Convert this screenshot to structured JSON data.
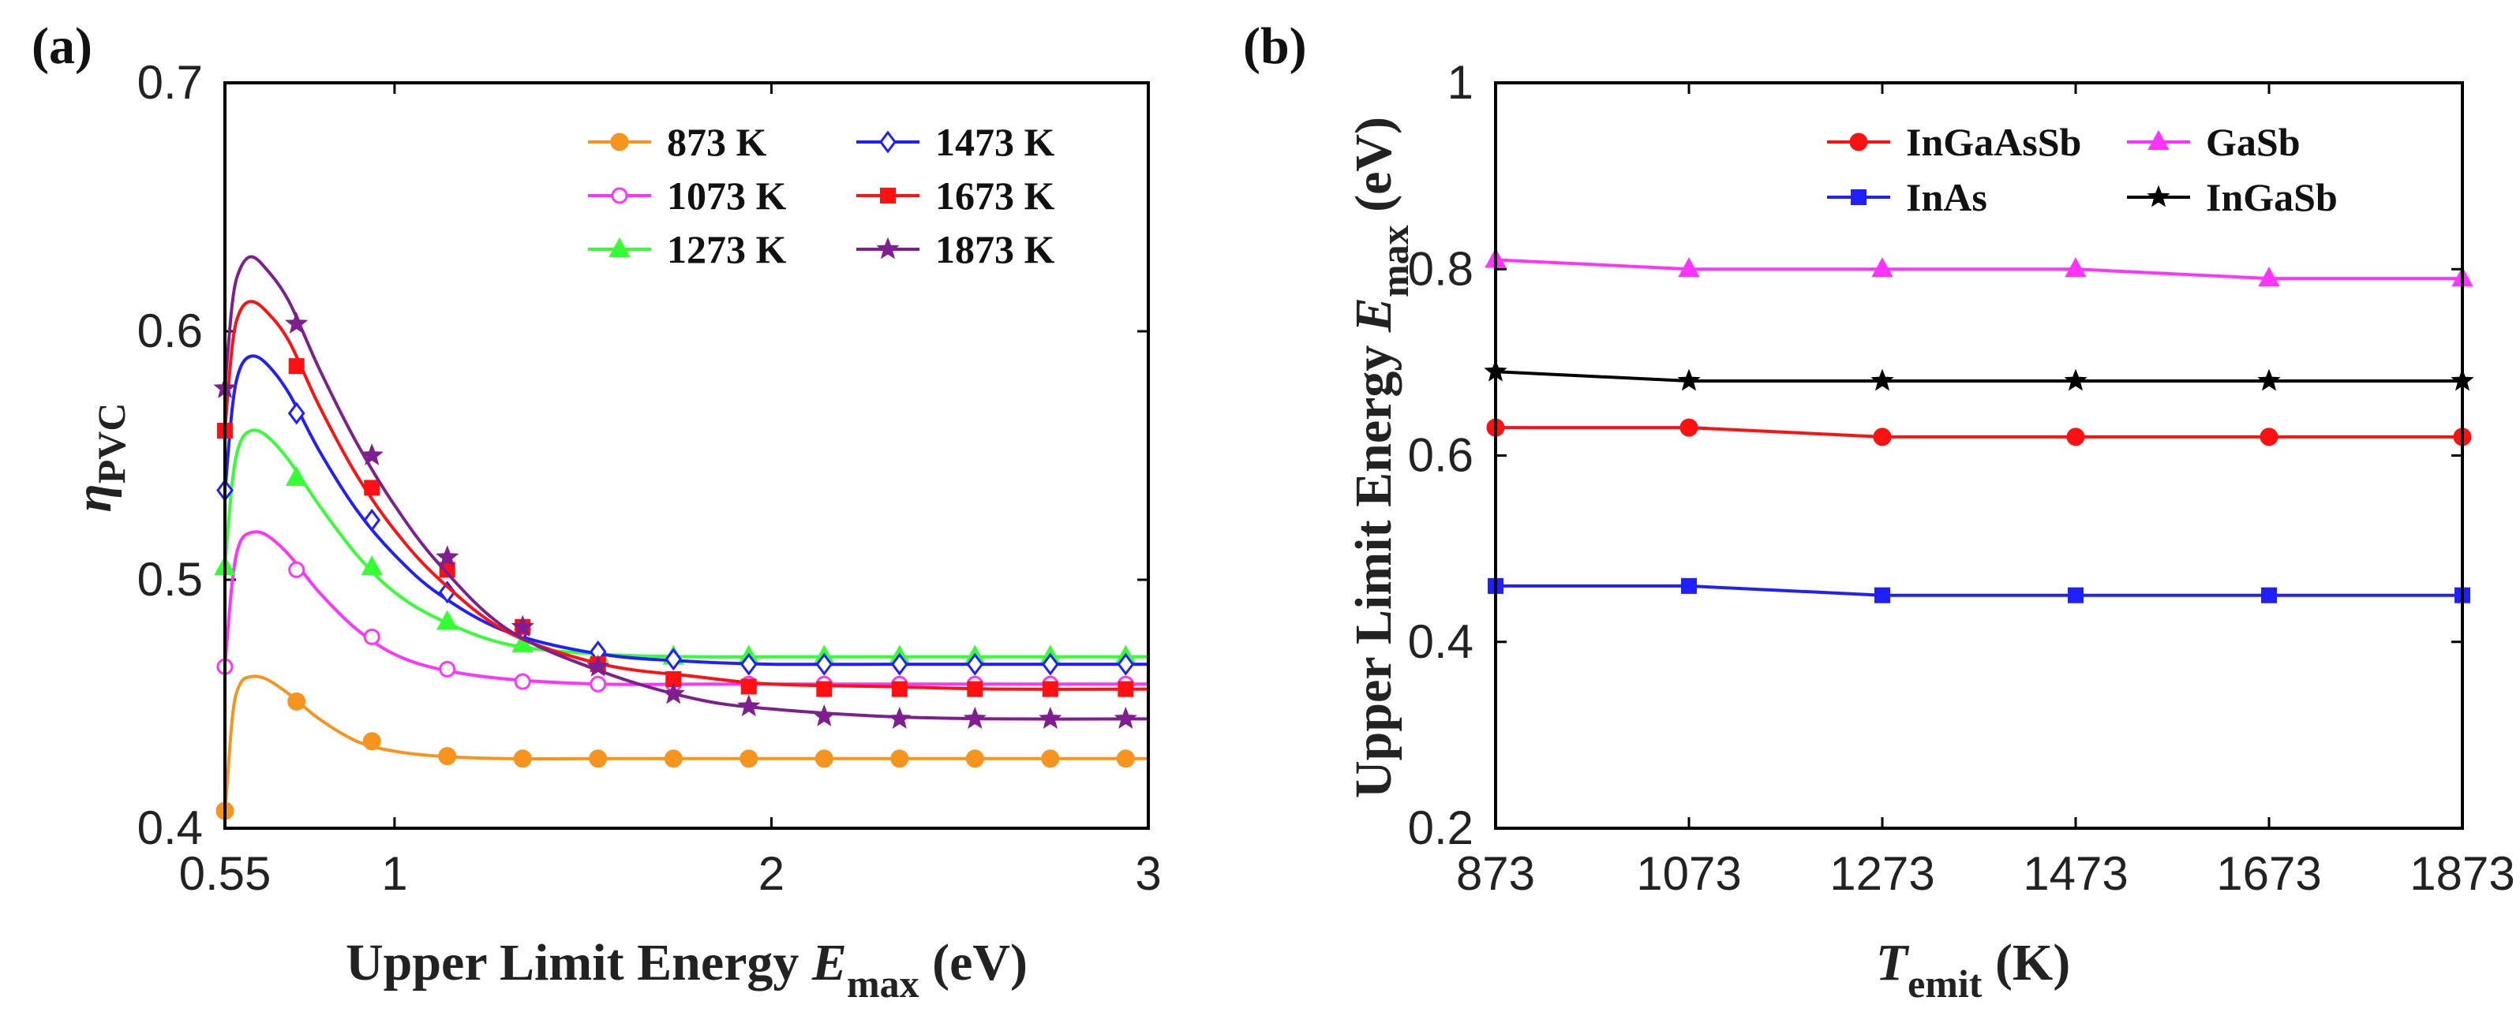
{
  "chart_data": [
    {
      "type": "line",
      "panel_label": "(a)",
      "ylabel": {
        "symbol": "η",
        "subscript": "PVC"
      },
      "xlabel": {
        "text": "Upper Limit Energy ",
        "symbol": "E",
        "subscript": "max",
        "unit": " (eV)"
      },
      "xlim": [
        0.55,
        3
      ],
      "ylim": [
        0.4,
        0.7
      ],
      "xticks": [
        0.55,
        1,
        2,
        3
      ],
      "xtick_labels": [
        "0.55",
        "1",
        "2",
        "3"
      ],
      "yticks": [
        0.4,
        0.5,
        0.6,
        0.7
      ],
      "ytick_labels": [
        "0.4",
        "0.5",
        "0.6",
        "0.7"
      ],
      "legend_position": "top-right",
      "series": [
        {
          "name": "873 K",
          "color": "#f7941d",
          "marker": "circle-filled",
          "x": [
            0.55,
            0.57,
            0.59,
            0.62,
            0.66,
            0.72,
            0.8,
            0.9,
            1.0,
            1.12,
            1.3,
            1.55,
            1.8,
            2.0,
            2.3,
            2.6,
            3.0
          ],
          "y": [
            0.405,
            0.445,
            0.458,
            0.461,
            0.46,
            0.454,
            0.444,
            0.435,
            0.431,
            0.429,
            0.428,
            0.428,
            0.428,
            0.428,
            0.428,
            0.428,
            0.428
          ],
          "markers_x": [
            0.55,
            0.74,
            0.94,
            1.14,
            1.34,
            1.54,
            1.74,
            1.94,
            2.14,
            2.34,
            2.54,
            2.74,
            2.94
          ],
          "markers_y": [
            0.407,
            0.451,
            0.435,
            0.429,
            0.428,
            0.428,
            0.428,
            0.428,
            0.428,
            0.428,
            0.428,
            0.428,
            0.428
          ]
        },
        {
          "name": "1073 K",
          "color": "#ff33ff",
          "marker": "circle-open",
          "x": [
            0.55,
            0.57,
            0.59,
            0.62,
            0.66,
            0.72,
            0.8,
            0.9,
            1.0,
            1.12,
            1.3,
            1.55,
            1.8,
            2.0,
            2.3,
            2.6,
            3.0
          ],
          "y": [
            0.465,
            0.5,
            0.515,
            0.519,
            0.518,
            0.51,
            0.495,
            0.48,
            0.47,
            0.464,
            0.46,
            0.458,
            0.458,
            0.458,
            0.458,
            0.458,
            0.458
          ],
          "markers_x": [
            0.55,
            0.74,
            0.94,
            1.14,
            1.34,
            1.54,
            1.74,
            1.94,
            2.14,
            2.34,
            2.54,
            2.74,
            2.94
          ],
          "markers_y": [
            0.465,
            0.504,
            0.477,
            0.464,
            0.459,
            0.458,
            0.458,
            0.458,
            0.458,
            0.458,
            0.458,
            0.458,
            0.458
          ]
        },
        {
          "name": "1273 K",
          "color": "#33ff33",
          "marker": "triangle-filled",
          "x": [
            0.55,
            0.57,
            0.59,
            0.62,
            0.66,
            0.72,
            0.8,
            0.9,
            1.0,
            1.12,
            1.3,
            1.55,
            1.8,
            2.0,
            2.3,
            2.6,
            3.0
          ],
          "y": [
            0.505,
            0.54,
            0.555,
            0.56,
            0.558,
            0.548,
            0.53,
            0.51,
            0.495,
            0.484,
            0.474,
            0.47,
            0.469,
            0.469,
            0.469,
            0.469,
            0.469
          ],
          "markers_x": [
            0.55,
            0.74,
            0.94,
            1.14,
            1.34,
            1.54,
            1.74,
            1.94,
            2.14,
            2.34,
            2.54,
            2.74,
            2.94
          ],
          "markers_y": [
            0.505,
            0.541,
            0.505,
            0.483,
            0.474,
            0.47,
            0.469,
            0.469,
            0.469,
            0.469,
            0.469,
            0.469,
            0.469
          ]
        },
        {
          "name": "1473 K",
          "color": "#1f1fff",
          "marker": "diamond-open",
          "x": [
            0.55,
            0.57,
            0.59,
            0.62,
            0.66,
            0.72,
            0.8,
            0.9,
            1.0,
            1.12,
            1.3,
            1.55,
            1.8,
            2.0,
            2.3,
            2.6,
            3.0
          ],
          "y": [
            0.535,
            0.57,
            0.585,
            0.59,
            0.587,
            0.575,
            0.552,
            0.528,
            0.51,
            0.494,
            0.479,
            0.47,
            0.467,
            0.466,
            0.466,
            0.466,
            0.466
          ],
          "markers_x": [
            0.55,
            0.74,
            0.94,
            1.14,
            1.34,
            1.54,
            1.74,
            1.94,
            2.14,
            2.34,
            2.54,
            2.74,
            2.94
          ],
          "markers_y": [
            0.536,
            0.567,
            0.524,
            0.495,
            0.48,
            0.471,
            0.468,
            0.466,
            0.466,
            0.466,
            0.466,
            0.466,
            0.466
          ]
        },
        {
          "name": "1673 K",
          "color": "#ff1111",
          "marker": "square-filled",
          "x": [
            0.55,
            0.57,
            0.59,
            0.62,
            0.66,
            0.72,
            0.8,
            0.9,
            1.0,
            1.12,
            1.3,
            1.55,
            1.8,
            2.0,
            2.3,
            2.6,
            3.0
          ],
          "y": [
            0.56,
            0.595,
            0.608,
            0.612,
            0.608,
            0.596,
            0.57,
            0.542,
            0.52,
            0.5,
            0.479,
            0.466,
            0.461,
            0.458,
            0.457,
            0.456,
            0.456
          ],
          "markers_x": [
            0.55,
            0.74,
            0.94,
            1.14,
            1.34,
            1.54,
            1.74,
            1.94,
            2.14,
            2.34,
            2.54,
            2.74,
            2.94
          ],
          "markers_y": [
            0.56,
            0.586,
            0.537,
            0.504,
            0.481,
            0.466,
            0.46,
            0.457,
            0.456,
            0.456,
            0.456,
            0.456,
            0.456
          ]
        },
        {
          "name": "1873 K",
          "color": "#7f1f8f",
          "marker": "star-filled",
          "x": [
            0.55,
            0.57,
            0.59,
            0.62,
            0.66,
            0.72,
            0.8,
            0.9,
            1.0,
            1.12,
            1.3,
            1.55,
            1.8,
            2.0,
            2.3,
            2.6,
            3.0
          ],
          "y": [
            0.577,
            0.612,
            0.625,
            0.63,
            0.625,
            0.612,
            0.585,
            0.555,
            0.53,
            0.506,
            0.48,
            0.463,
            0.452,
            0.448,
            0.445,
            0.444,
            0.444
          ],
          "markers_x": [
            0.55,
            0.74,
            0.94,
            1.14,
            1.34,
            1.54,
            1.74,
            1.94,
            2.14,
            2.34,
            2.54,
            2.74,
            2.94
          ],
          "markers_y": [
            0.577,
            0.603,
            0.55,
            0.509,
            0.481,
            0.465,
            0.454,
            0.449,
            0.445,
            0.444,
            0.444,
            0.444,
            0.444
          ]
        }
      ]
    },
    {
      "type": "line",
      "panel_label": "(b)",
      "ylabel": {
        "text": "Upper Limit Energy ",
        "symbol": "E",
        "subscript": "max",
        "unit": " (eV)"
      },
      "xlabel": {
        "symbol": "T",
        "subscript": "emit",
        "unit": " (K)"
      },
      "categories": [
        "873",
        "1073",
        "1273",
        "1473",
        "1673",
        "1873"
      ],
      "ylim": [
        0.2,
        1.0
      ],
      "yticks": [
        0.2,
        0.4,
        0.6,
        0.8,
        1.0
      ],
      "ytick_labels": [
        "0.2",
        "0.4",
        "0.6",
        "0.8",
        "1"
      ],
      "legend_position": "top-right",
      "series": [
        {
          "name": "InGaAsSb",
          "color": "#ff1111",
          "marker": "circle-filled",
          "values": [
            0.63,
            0.63,
            0.62,
            0.62,
            0.62,
            0.62
          ]
        },
        {
          "name": "GaSb",
          "color": "#ff33ff",
          "marker": "triangle-filled",
          "values": [
            0.81,
            0.8,
            0.8,
            0.8,
            0.79,
            0.79
          ]
        },
        {
          "name": "InAs",
          "color": "#1f1fff",
          "marker": "square-filled",
          "values": [
            0.46,
            0.46,
            0.45,
            0.45,
            0.45,
            0.45
          ]
        },
        {
          "name": "InGaSb",
          "color": "#000000",
          "marker": "star-filled",
          "values": [
            0.69,
            0.68,
            0.68,
            0.68,
            0.68,
            0.68
          ]
        }
      ]
    }
  ]
}
